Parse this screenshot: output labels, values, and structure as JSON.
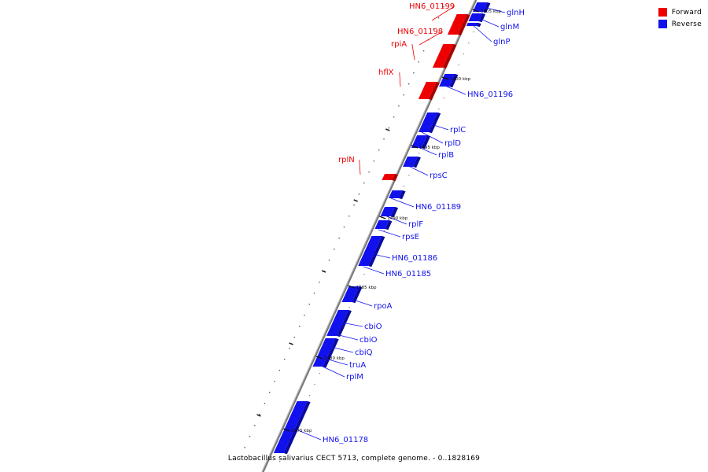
{
  "legend": [
    {
      "label": "Forward",
      "color": "#ee0000"
    },
    {
      "label": "Reverse",
      "color": "#1111ee"
    }
  ],
  "caption": "Lactobacillus salivarius CECT 5713, complete genome. - 0..1828169",
  "colors": {
    "forward": "#ee0000",
    "reverse": "#1111ee",
    "backbone": "#888888"
  },
  "axis_labels": [
    {
      "kbp": 1505,
      "text": "1505 kbp"
    },
    {
      "kbp": 1500,
      "text": "1500 kbp"
    },
    {
      "kbp": 1495,
      "text": "1495 kbp"
    },
    {
      "kbp": 1490,
      "text": "1490 kbp"
    },
    {
      "kbp": 1485,
      "text": "1485 kbp"
    },
    {
      "kbp": 1480,
      "text": "1480 kbp"
    },
    {
      "kbp": 1475,
      "text": "1475 kbp"
    }
  ],
  "genes": [
    {
      "name": "HN6_01199",
      "strand": "forward"
    },
    {
      "name": "HN6_01198",
      "strand": "forward"
    },
    {
      "name": "rpiA",
      "strand": "forward"
    },
    {
      "name": "hflX",
      "strand": "forward"
    },
    {
      "name": "rplN",
      "strand": "forward"
    },
    {
      "name": "glnH",
      "strand": "reverse"
    },
    {
      "name": "glnM",
      "strand": "reverse"
    },
    {
      "name": "glnP",
      "strand": "reverse"
    },
    {
      "name": "HN6_01196",
      "strand": "reverse"
    },
    {
      "name": "rplC",
      "strand": "reverse"
    },
    {
      "name": "rplD",
      "strand": "reverse"
    },
    {
      "name": "rplB",
      "strand": "reverse"
    },
    {
      "name": "rpsC",
      "strand": "reverse"
    },
    {
      "name": "HN6_01189",
      "strand": "reverse"
    },
    {
      "name": "rplF",
      "strand": "reverse"
    },
    {
      "name": "rpsE",
      "strand": "reverse"
    },
    {
      "name": "HN6_01186",
      "strand": "reverse"
    },
    {
      "name": "HN6_01185",
      "strand": "reverse"
    },
    {
      "name": "rpoA",
      "strand": "reverse"
    },
    {
      "name": "cbiO",
      "strand": "reverse"
    },
    {
      "name": "cbiO",
      "strand": "reverse"
    },
    {
      "name": "cbiQ",
      "strand": "reverse"
    },
    {
      "name": "truA",
      "strand": "reverse"
    },
    {
      "name": "rplM",
      "strand": "reverse"
    },
    {
      "name": "HN6_01178",
      "strand": "reverse"
    }
  ]
}
